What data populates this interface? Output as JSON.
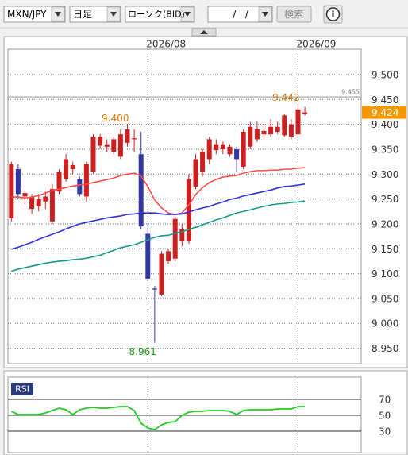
{
  "toolbar": {
    "pair": "MXN/JPY",
    "interval": "日足",
    "chart_kind": "ローソク(BID)",
    "date": "/   /",
    "search": "検索",
    "info_icon": "i"
  },
  "chart_data": [
    {
      "type": "candlestick",
      "categories": [
        null,
        null,
        null,
        null,
        null,
        null,
        null,
        null,
        null,
        null,
        null,
        null,
        null,
        null,
        null,
        null,
        null,
        null,
        null,
        null,
        "2026/08",
        null,
        null,
        null,
        null,
        null,
        null,
        null,
        null,
        null,
        null,
        null,
        null,
        null,
        null,
        null,
        null,
        null,
        null,
        null,
        null,
        null,
        "2026/09",
        null
      ],
      "open": [
        9.211,
        9.31,
        9.255,
        9.23,
        9.235,
        9.245,
        9.205,
        9.265,
        9.29,
        9.31,
        9.29,
        9.255,
        9.305,
        9.357,
        9.355,
        9.345,
        9.335,
        9.363,
        9.37,
        9.34,
        9.18,
        9.07,
        9.058,
        9.125,
        9.13,
        9.165,
        9.165,
        9.275,
        9.305,
        9.33,
        9.348,
        9.35,
        9.34,
        9.35,
        9.315,
        9.355,
        9.37,
        9.38,
        9.38,
        9.385,
        9.378,
        9.375,
        9.38,
        9.42
      ],
      "high": [
        9.325,
        9.32,
        9.27,
        9.26,
        9.26,
        9.265,
        9.28,
        9.31,
        9.34,
        9.325,
        9.295,
        9.325,
        9.38,
        9.38,
        9.37,
        9.375,
        9.39,
        9.4,
        9.39,
        9.385,
        9.2,
        9.075,
        9.145,
        9.15,
        9.215,
        9.2,
        9.3,
        9.34,
        9.35,
        9.375,
        9.37,
        9.365,
        9.36,
        9.355,
        9.39,
        9.405,
        9.405,
        9.4,
        9.41,
        9.405,
        9.42,
        9.41,
        9.442,
        9.435
      ],
      "low": [
        9.205,
        9.25,
        9.24,
        9.22,
        9.225,
        9.23,
        9.2,
        9.26,
        9.285,
        9.3,
        9.255,
        9.245,
        9.3,
        9.35,
        9.345,
        9.34,
        9.33,
        9.355,
        9.345,
        9.19,
        9.085,
        8.961,
        9.055,
        9.12,
        9.125,
        9.155,
        9.16,
        9.27,
        9.295,
        9.32,
        9.34,
        9.34,
        9.335,
        9.305,
        9.31,
        9.35,
        9.365,
        9.37,
        9.375,
        9.38,
        9.375,
        9.37,
        9.375,
        9.418
      ],
      "close": [
        9.32,
        9.26,
        9.262,
        9.255,
        9.25,
        9.255,
        9.27,
        9.305,
        9.33,
        9.318,
        9.26,
        9.32,
        9.375,
        9.375,
        9.36,
        9.37,
        9.38,
        9.39,
        9.372,
        9.195,
        9.09,
        9.068,
        9.14,
        9.145,
        9.21,
        9.19,
        9.29,
        9.33,
        9.345,
        9.37,
        9.36,
        9.36,
        9.355,
        9.33,
        9.385,
        9.395,
        9.39,
        9.387,
        9.395,
        9.395,
        9.418,
        9.4,
        9.43,
        9.424
      ],
      "up_color": "#cc1f1f",
      "down_color": "#3236a8",
      "series": [
        {
          "color": "#ff4a4a",
          "values": [
            9.254,
            9.254,
            9.252,
            9.254,
            9.257,
            9.262,
            9.267,
            9.27,
            9.273,
            9.276,
            9.278,
            9.28,
            9.283,
            9.286,
            9.289,
            9.292,
            9.297,
            9.3,
            9.302,
            9.296,
            9.275,
            9.248,
            9.232,
            9.222,
            9.219,
            9.222,
            9.238,
            9.259,
            9.273,
            9.283,
            9.289,
            9.294,
            9.296,
            9.297,
            9.302,
            9.305,
            9.307,
            9.307,
            9.308,
            9.308,
            9.31,
            9.31,
            9.312,
            9.313
          ]
        },
        {
          "color": "#3030dd",
          "values": [
            9.149,
            9.153,
            9.158,
            9.163,
            9.169,
            9.174,
            9.179,
            9.184,
            9.19,
            9.195,
            9.2,
            9.203,
            9.206,
            9.209,
            9.212,
            9.214,
            9.216,
            9.219,
            9.22,
            9.222,
            9.222,
            9.222,
            9.22,
            9.219,
            9.219,
            9.22,
            9.224,
            9.228,
            9.232,
            9.235,
            9.24,
            9.244,
            9.249,
            9.252,
            9.256,
            9.259,
            9.262,
            9.265,
            9.268,
            9.272,
            9.275,
            9.276,
            9.278,
            9.28
          ]
        },
        {
          "color": "#129a8a",
          "values": [
            9.105,
            9.109,
            9.112,
            9.115,
            9.118,
            9.121,
            9.123,
            9.125,
            9.126,
            9.128,
            9.129,
            9.131,
            9.134,
            9.137,
            9.142,
            9.147,
            9.152,
            9.155,
            9.158,
            9.163,
            9.168,
            9.173,
            9.176,
            9.177,
            9.181,
            9.184,
            9.189,
            9.193,
            9.198,
            9.203,
            9.208,
            9.212,
            9.217,
            9.222,
            9.225,
            9.228,
            9.232,
            9.235,
            9.238,
            9.24,
            9.241,
            9.243,
            9.244,
            9.246
          ]
        }
      ],
      "ylim": [
        8.919,
        9.551
      ],
      "yticks": [
        {
          "value": 9.5,
          "label": "9.500"
        },
        {
          "value": 9.45,
          "label": "9.450"
        },
        {
          "value": 9.4,
          "label": "9.400"
        },
        {
          "value": 9.35,
          "label": "9.350"
        },
        {
          "value": 9.3,
          "label": "9.300"
        },
        {
          "value": 9.25,
          "label": "9.250"
        },
        {
          "value": 9.2,
          "label": "9.200"
        },
        {
          "value": 9.15,
          "label": "9.150"
        },
        {
          "value": 9.1,
          "label": "9.100"
        },
        {
          "value": 9.05,
          "label": "9.050"
        },
        {
          "value": 9.0,
          "label": "9.000"
        },
        {
          "value": 8.95,
          "label": "8.950"
        }
      ],
      "grid": true,
      "annotations": [
        {
          "value": 9.4,
          "label": "9.400",
          "color": "#e07a00"
        },
        {
          "value": 9.442,
          "label": "9.442",
          "color": "#e07a00"
        },
        {
          "value": 8.961,
          "label": "8.961",
          "color": "#1a9a1a"
        }
      ],
      "reference_line": {
        "value": 9.455,
        "label": "9.455"
      },
      "last_price": {
        "value": 9.424,
        "label": "9.424",
        "color": "#f39800"
      }
    },
    {
      "type": "line",
      "label": "RSI",
      "series": [
        {
          "color": "#22cc22",
          "values": [
            55,
            51,
            51,
            51,
            51,
            53,
            56,
            59,
            57,
            51,
            57,
            59,
            60,
            59,
            59,
            60,
            61,
            61,
            56,
            40,
            34,
            32,
            38,
            41,
            42,
            50,
            54,
            55,
            55,
            56,
            56,
            56,
            55,
            51,
            56,
            57,
            57,
            57,
            57,
            58,
            58,
            58,
            61,
            61
          ]
        }
      ],
      "ylim": [
        3,
        98
      ],
      "yticks": [
        70,
        50,
        30
      ]
    }
  ]
}
